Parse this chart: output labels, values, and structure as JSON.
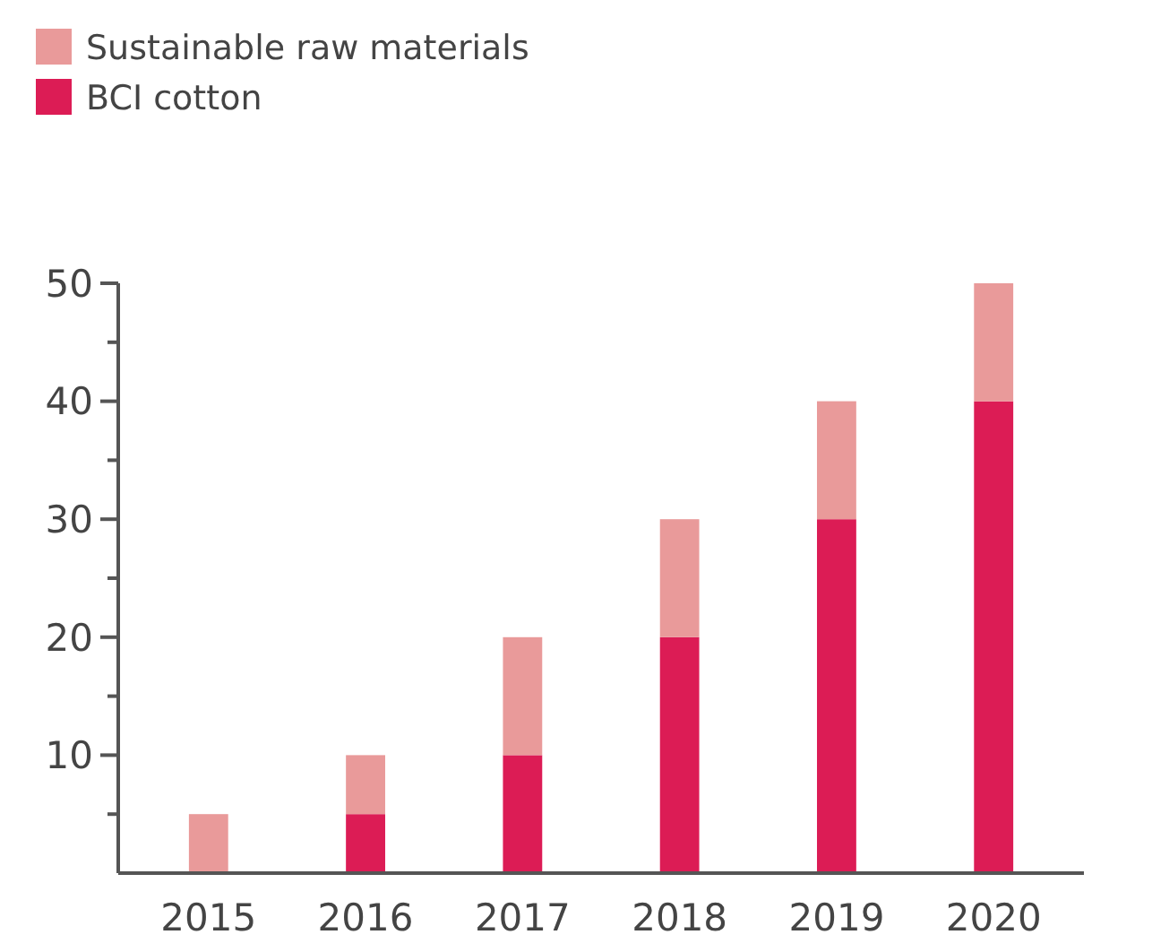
{
  "chart_data": {
    "type": "bar",
    "stacked": true,
    "categories": [
      "2015",
      "2016",
      "2017",
      "2018",
      "2019",
      "2020"
    ],
    "series": [
      {
        "name": "BCI cotton",
        "color": "#dc1c55",
        "values": [
          0,
          5,
          10,
          20,
          30,
          40
        ]
      },
      {
        "name": "Sustainable raw materials",
        "color": "#e99a9a",
        "values": [
          5,
          5,
          10,
          10,
          10,
          10
        ]
      }
    ],
    "ylim": [
      0,
      50
    ],
    "yticks": [
      {
        "value": 5,
        "label": null
      },
      10,
      {
        "value": 15,
        "label": null
      },
      20,
      {
        "value": 25,
        "label": null
      },
      30,
      {
        "value": 35,
        "label": null
      },
      40,
      {
        "value": 45,
        "label": null
      },
      50
    ],
    "legend": "top left",
    "grid": false
  }
}
